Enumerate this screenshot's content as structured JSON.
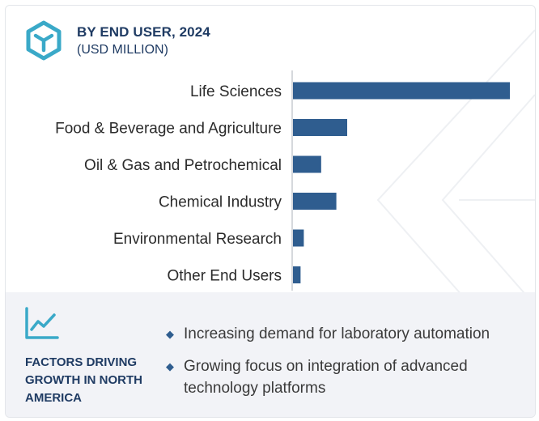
{
  "header": {
    "title": "BY END USER, 2024",
    "subtitle": "(USD MILLION)",
    "icon": "cube-icon"
  },
  "chart_data": {
    "type": "bar",
    "orientation": "horizontal",
    "title": "BY END USER, 2024",
    "subtitle": "(USD MILLION)",
    "categories": [
      "Life Sciences",
      "Food & Beverage and Agriculture",
      "Oil & Gas and Petrochemical",
      "Chemical Industry",
      "Environmental Research",
      "Other End Users"
    ],
    "values": [
      100,
      25,
      13,
      20,
      5,
      3.5
    ],
    "bar_color": "#2f5d8f",
    "grid": false,
    "axis_ticks": false
  },
  "factors": {
    "icon": "trend-chart-icon",
    "title": "FACTORS DRIVING GROWTH IN NORTH AMERICA",
    "items": [
      "Increasing demand for laboratory automation",
      "Growing focus on integration of advanced technology platforms"
    ],
    "bullet": "◆"
  },
  "colors": {
    "title": "#1f3b63",
    "bar": "#2f5d8f",
    "icon": "#3aa9c8",
    "panel_bg": "#f2f3f7"
  }
}
